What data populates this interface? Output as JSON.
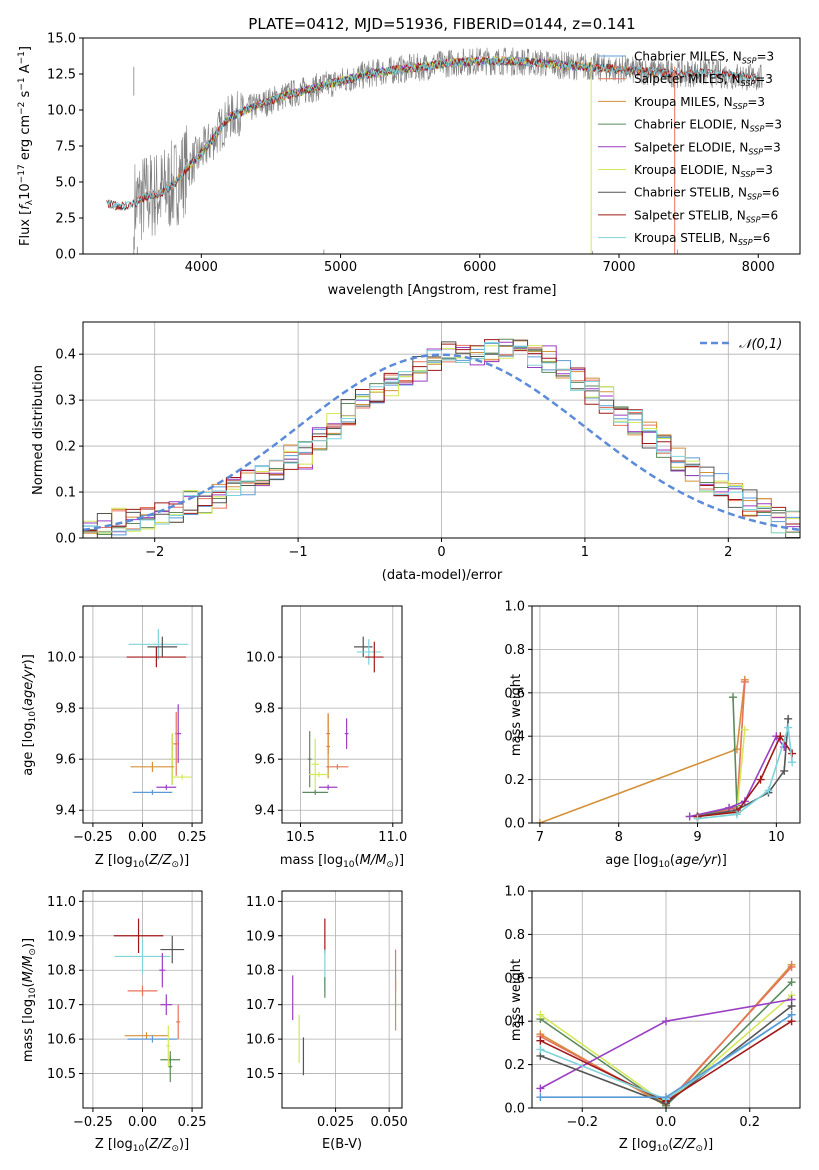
{
  "chart_data": [
    {
      "id": "spectrum",
      "type": "line",
      "title": "PLATE=0412, MJD=51936, FIBERID=0144, z=0.141",
      "xlabel": "wavelength [Angstrom, rest frame]",
      "ylabel": "Flux [f_λ 10^-17 erg cm^-2 s^-1 A^-1]",
      "xlim": [
        3150,
        8300
      ],
      "ylim": [
        0,
        15
      ],
      "xticks": [
        4000,
        5000,
        6000,
        7000,
        8000
      ],
      "yticks": [
        0.0,
        2.5,
        5.0,
        7.5,
        10.0,
        12.5,
        15.0
      ],
      "grid": false,
      "legend_position": "top-right",
      "observed_color": "#808080",
      "data_points": {
        "x": [
          3300,
          3400,
          3500,
          3600,
          3700,
          3800,
          3900,
          4000,
          4100,
          4200,
          4400,
          4600,
          4800,
          5000,
          5200,
          5400,
          5600,
          5800,
          6000,
          6200,
          6400,
          6600,
          6800,
          7000,
          7200,
          7400,
          7600,
          7800,
          8000
        ],
        "y": [
          3.6,
          3.3,
          3.4,
          4.0,
          4.2,
          4.8,
          6.0,
          7.0,
          8.2,
          9.5,
          10.3,
          11.0,
          11.5,
          12.0,
          12.5,
          12.8,
          13.0,
          13.3,
          13.4,
          13.4,
          13.3,
          13.1,
          13.0,
          12.8,
          12.7,
          12.5,
          12.6,
          12.4,
          12.2
        ]
      },
      "series": [
        {
          "name": "Chabrier MILES, N_SSP=3",
          "label_main": "Chabrier MILES, N",
          "label_sub": "SSP",
          "label_tail": "=3",
          "color": "#5b9bd5",
          "xmin": 3540,
          "xmax": 7400
        },
        {
          "name": "Salpeter MILES, N_SSP=3",
          "label_main": "Salpeter MILES, N",
          "label_sub": "SSP",
          "label_tail": "=3",
          "color": "#e6735c",
          "xmin": 3540,
          "xmax": 7400
        },
        {
          "name": "Kroupa MILES, N_SSP=3",
          "label_main": "Kroupa MILES, N",
          "label_sub": "SSP",
          "label_tail": "=3",
          "color": "#d4913a",
          "xmin": 3540,
          "xmax": 7400
        },
        {
          "name": "Chabrier ELODIE, N_SSP=3",
          "label_main": "Chabrier ELODIE, N",
          "label_sub": "SSP",
          "label_tail": "=3",
          "color": "#5c8a5c",
          "xmin": 3900,
          "xmax": 6800
        },
        {
          "name": "Salpeter ELODIE, N_SSP=3",
          "label_main": "Salpeter ELODIE, N",
          "label_sub": "SSP",
          "label_tail": "=3",
          "color": "#9b3fc4",
          "xmin": 3900,
          "xmax": 6800
        },
        {
          "name": "Kroupa ELODIE, N_SSP=3",
          "label_main": "Kroupa ELODIE, N",
          "label_sub": "SSP",
          "label_tail": "=3",
          "color": "#d4e85a",
          "xmin": 3900,
          "xmax": 6800
        },
        {
          "name": "Chabrier STELIB, N_SSP=6",
          "label_main": "Chabrier STELIB, N",
          "label_sub": "SSP",
          "label_tail": "=6",
          "color": "#555555",
          "xmin": 3320,
          "xmax": 8000
        },
        {
          "name": "Salpeter STELIB, N_SSP=6",
          "label_main": "Salpeter STELIB, N",
          "label_sub": "SSP",
          "label_tail": "=6",
          "color": "#a01818",
          "xmin": 3320,
          "xmax": 8000
        },
        {
          "name": "Kroupa STELIB, N_SSP=6",
          "label_main": "Kroupa STELIB, N",
          "label_sub": "SSP",
          "label_tail": "=6",
          "color": "#7fd3dc",
          "xmin": 3320,
          "xmax": 8000
        }
      ]
    },
    {
      "id": "residuals",
      "type": "line",
      "xlabel": "(data-model)/error",
      "ylabel": "Normed distribution",
      "xlim": [
        -2.5,
        2.5
      ],
      "ylim": [
        0,
        0.47
      ],
      "xticks": [
        -2,
        -1,
        0,
        1,
        2
      ],
      "xtick_labels": [
        "−2",
        "−1",
        "0",
        "1",
        "2"
      ],
      "yticks": [
        0.0,
        0.1,
        0.2,
        0.3,
        0.4
      ],
      "grid": true,
      "legend_label": "𝒩(0,1)",
      "legend_position": "top-right",
      "normal_curve": {
        "mean": 0,
        "sigma": 1,
        "color": "#5b8bd9"
      },
      "hist_bins": {
        "start": -2.5,
        "width": 0.1,
        "count": 50
      },
      "hist_envelope": [
        0.02,
        0.025,
        0.035,
        0.04,
        0.045,
        0.05,
        0.06,
        0.075,
        0.08,
        0.095,
        0.11,
        0.12,
        0.135,
        0.15,
        0.175,
        0.18,
        0.21,
        0.245,
        0.275,
        0.3,
        0.31,
        0.33,
        0.35,
        0.37,
        0.39,
        0.4,
        0.395,
        0.4,
        0.41,
        0.42,
        0.415,
        0.4,
        0.39,
        0.37,
        0.35,
        0.32,
        0.3,
        0.27,
        0.25,
        0.225,
        0.2,
        0.175,
        0.15,
        0.125,
        0.11,
        0.095,
        0.075,
        0.06,
        0.04,
        0.03
      ]
    },
    {
      "id": "age-vs-Z",
      "type": "scatter",
      "xlabel": "Z [log10(Z/Z☉)]",
      "ylabel": "age  [log10(age/yr)]",
      "xlim": [
        -0.3,
        0.3
      ],
      "ylim": [
        9.35,
        10.2
      ],
      "xticks": [
        -0.25,
        0.0,
        0.25
      ],
      "xtick_labels": [
        "−0.25",
        "0.00",
        "0.25"
      ],
      "yticks": [
        9.4,
        9.6,
        9.8,
        10.0
      ],
      "ytick_labels": [
        "9.4",
        "9.6",
        "9.8",
        "10.0"
      ],
      "grid": true,
      "points": [
        {
          "x": 0.08,
          "y": 10.05,
          "xerr": 0.3,
          "yerr": 0.12,
          "color": "#7fd3dc"
        },
        {
          "x": 0.1,
          "y": 10.04,
          "xerr": 0.15,
          "yerr": 0.08,
          "color": "#555555"
        },
        {
          "x": 0.07,
          "y": 10.0,
          "xerr": 0.3,
          "yerr": 0.08,
          "color": "#a01818"
        },
        {
          "x": 0.18,
          "y": 9.7,
          "xerr": 0.03,
          "yerr": 0.23,
          "color": "#9b3fc4"
        },
        {
          "x": 0.17,
          "y": 9.66,
          "xerr": 0.03,
          "yerr": 0.25,
          "color": "#e6735c"
        },
        {
          "x": 0.15,
          "y": 9.6,
          "xerr": 0.02,
          "yerr": 0.2,
          "color": "#5c8a5c"
        },
        {
          "x": 0.15,
          "y": 9.6,
          "xerr": 0.02,
          "yerr": 0.2,
          "color": "#d4e85a"
        },
        {
          "x": 0.05,
          "y": 9.57,
          "xerr": 0.22,
          "yerr": 0.04,
          "color": "#d4913a"
        },
        {
          "x": 0.2,
          "y": 9.53,
          "xerr": 0.1,
          "yerr": 0.02,
          "color": "#d4e85a"
        },
        {
          "x": 0.12,
          "y": 9.49,
          "xerr": 0.1,
          "yerr": 0.02,
          "color": "#9b3fc4"
        },
        {
          "x": 0.05,
          "y": 9.47,
          "xerr": 0.2,
          "yerr": 0.02,
          "color": "#5b9bd5"
        }
      ]
    },
    {
      "id": "age-vs-mass",
      "type": "scatter",
      "xlabel": "mass [log10(M/M☉)]",
      "xlim": [
        10.4,
        11.05
      ],
      "ylim": [
        9.35,
        10.2
      ],
      "xticks": [
        10.5,
        11.0
      ],
      "xtick_labels": [
        "10.5",
        "11.0"
      ],
      "yticks": [
        9.4,
        9.6,
        9.8,
        10.0
      ],
      "ytick_labels": [
        "9.4",
        "9.6",
        "9.8",
        "10.0"
      ],
      "grid": true,
      "points": [
        {
          "x": 10.84,
          "y": 10.04,
          "xerr": 0.1,
          "yerr": 0.08,
          "color": "#555555"
        },
        {
          "x": 10.87,
          "y": 10.02,
          "xerr": 0.13,
          "yerr": 0.1,
          "color": "#7fd3dc"
        },
        {
          "x": 10.9,
          "y": 10.0,
          "xerr": 0.1,
          "yerr": 0.12,
          "color": "#a01818"
        },
        {
          "x": 10.75,
          "y": 9.7,
          "xerr": 0.02,
          "yerr": 0.12,
          "color": "#9b3fc4"
        },
        {
          "x": 10.65,
          "y": 9.7,
          "xerr": 0.02,
          "yerr": 0.16,
          "color": "#e6735c"
        },
        {
          "x": 10.55,
          "y": 9.6,
          "xerr": 0.02,
          "yerr": 0.22,
          "color": "#5c8a5c"
        },
        {
          "x": 10.65,
          "y": 9.65,
          "xerr": 0.02,
          "yerr": 0.25,
          "color": "#d4913a"
        },
        {
          "x": 10.58,
          "y": 9.58,
          "xerr": 0.04,
          "yerr": 0.2,
          "color": "#d4e85a"
        },
        {
          "x": 10.7,
          "y": 9.57,
          "xerr": 0.12,
          "yerr": 0.02,
          "color": "#e6735c"
        },
        {
          "x": 10.6,
          "y": 9.54,
          "xerr": 0.11,
          "yerr": 0.02,
          "color": "#d4e85a"
        },
        {
          "x": 10.65,
          "y": 9.49,
          "xerr": 0.1,
          "yerr": 0.02,
          "color": "#9b3fc4"
        },
        {
          "x": 10.58,
          "y": 9.47,
          "xerr": 0.14,
          "yerr": 0.02,
          "color": "#5c8a5c"
        }
      ]
    },
    {
      "id": "weight-vs-age",
      "type": "line",
      "xlabel": "age  [log10(age/yr)]",
      "ylabel": "mass weight",
      "xlim": [
        6.9,
        10.3
      ],
      "ylim": [
        0,
        1
      ],
      "xticks": [
        7,
        8,
        9,
        10
      ],
      "xtick_labels": [
        "7",
        "8",
        "9",
        "10"
      ],
      "yticks": [
        0.0,
        0.2,
        0.4,
        0.6,
        0.8,
        1.0
      ],
      "ytick_labels": [
        "0.0",
        "0.2",
        "0.4",
        "0.6",
        "0.8",
        "1.0"
      ],
      "grid": true,
      "series": [
        {
          "color": "#d4913a",
          "x": [
            7.0,
            9.5,
            9.6
          ],
          "y": [
            0.0,
            0.34,
            0.66
          ]
        },
        {
          "color": "#e6735c",
          "x": [
            9.0,
            9.5,
            9.6
          ],
          "y": [
            0.03,
            0.07,
            0.65
          ]
        },
        {
          "color": "#5c8a5c",
          "x": [
            9.0,
            9.5,
            9.45
          ],
          "y": [
            0.03,
            0.08,
            0.58
          ]
        },
        {
          "color": "#d4e85a",
          "x": [
            9.0,
            9.5,
            9.6
          ],
          "y": [
            0.03,
            0.05,
            0.43
          ]
        },
        {
          "color": "#9b3fc4",
          "x": [
            8.9,
            9.4,
            9.6,
            10.0,
            10.1
          ],
          "y": [
            0.03,
            0.07,
            0.1,
            0.4,
            0.35
          ]
        },
        {
          "color": "#555555",
          "x": [
            9.0,
            9.5,
            9.9,
            10.1,
            10.15
          ],
          "y": [
            0.03,
            0.06,
            0.14,
            0.24,
            0.48
          ]
        },
        {
          "color": "#a01818",
          "x": [
            9.0,
            9.5,
            9.8,
            10.05,
            10.2
          ],
          "y": [
            0.03,
            0.05,
            0.2,
            0.4,
            0.32
          ]
        },
        {
          "color": "#7fd3dc",
          "x": [
            9.0,
            9.5,
            9.9,
            10.15,
            10.2
          ],
          "y": [
            0.02,
            0.04,
            0.15,
            0.44,
            0.28
          ]
        }
      ]
    },
    {
      "id": "mass-vs-Z",
      "type": "scatter",
      "xlabel": "Z [log10(Z/Z☉)]",
      "ylabel": "mass [log10(M/M☉)]",
      "xlim": [
        -0.3,
        0.3
      ],
      "ylim": [
        10.4,
        11.03
      ],
      "xticks": [
        -0.25,
        0.0,
        0.25
      ],
      "xtick_labels": [
        "−0.25",
        "0.00",
        "0.25"
      ],
      "yticks": [
        10.5,
        10.6,
        10.7,
        10.8,
        10.9,
        11.0
      ],
      "ytick_labels": [
        "10.5",
        "10.6",
        "10.7",
        "10.8",
        "10.9",
        "11.0"
      ],
      "grid": true,
      "points": [
        {
          "x": -0.02,
          "y": 10.9,
          "xerr": 0.25,
          "yerr": 0.1,
          "color": "#a01818"
        },
        {
          "x": 0.15,
          "y": 10.86,
          "xerr": 0.12,
          "yerr": 0.08,
          "color": "#555555"
        },
        {
          "x": 0.0,
          "y": 10.84,
          "xerr": 0.28,
          "yerr": 0.1,
          "color": "#7fd3dc"
        },
        {
          "x": 0.1,
          "y": 10.8,
          "xerr": 0.03,
          "yerr": 0.1,
          "color": "#9b3fc4"
        },
        {
          "x": 0.0,
          "y": 10.74,
          "xerr": 0.15,
          "yerr": 0.03,
          "color": "#e6735c"
        },
        {
          "x": 0.12,
          "y": 10.7,
          "xerr": 0.06,
          "yerr": 0.06,
          "color": "#9b3fc4"
        },
        {
          "x": 0.02,
          "y": 10.61,
          "xerr": 0.22,
          "yerr": 0.02,
          "color": "#d4913a"
        },
        {
          "x": 0.05,
          "y": 10.6,
          "xerr": 0.25,
          "yerr": 0.02,
          "color": "#5b9bd5"
        },
        {
          "x": 0.18,
          "y": 10.65,
          "xerr": 0.02,
          "yerr": 0.1,
          "color": "#e6735c"
        },
        {
          "x": 0.14,
          "y": 10.52,
          "xerr": 0.02,
          "yerr": 0.09,
          "color": "#5c8a5c"
        },
        {
          "x": 0.14,
          "y": 10.54,
          "xerr": 0.1,
          "yerr": 0.02,
          "color": "#5c8a5c"
        },
        {
          "x": 0.13,
          "y": 10.58,
          "xerr": 0.02,
          "yerr": 0.12,
          "color": "#d4e85a"
        }
      ]
    },
    {
      "id": "mass-vs-ebv",
      "type": "scatter",
      "xlabel": "E(B-V)",
      "xlim": [
        0.0,
        0.056
      ],
      "ylim": [
        10.4,
        11.03
      ],
      "xticks": [
        0.025,
        0.05
      ],
      "xtick_labels": [
        "0.025",
        "0.050"
      ],
      "yticks": [
        10.5,
        10.6,
        10.7,
        10.8,
        10.9,
        11.0
      ],
      "ytick_labels": [
        "10.5",
        "10.6",
        "10.7",
        "10.8",
        "10.9",
        "11.0"
      ],
      "grid": true,
      "points": [
        {
          "x": 0.005,
          "y": 10.72,
          "xerr": 0,
          "yerr": 0.13,
          "color": "#9b3fc4"
        },
        {
          "x": 0.008,
          "y": 10.6,
          "xerr": 0,
          "yerr": 0.14,
          "color": "#d4e85a"
        },
        {
          "x": 0.01,
          "y": 10.55,
          "xerr": 0,
          "yerr": 0.11,
          "color": "#555555"
        },
        {
          "x": 0.02,
          "y": 10.9,
          "xerr": 0,
          "yerr": 0.1,
          "color": "#a01818"
        },
        {
          "x": 0.02,
          "y": 10.8,
          "xerr": 0,
          "yerr": 0.12,
          "color": "#7fd3dc"
        },
        {
          "x": 0.02,
          "y": 10.75,
          "xerr": 0,
          "yerr": 0.06,
          "color": "#5c8a5c"
        },
        {
          "x": 0.053,
          "y": 10.8,
          "xerr": 0,
          "yerr": 0.12,
          "color": "#e6735c"
        },
        {
          "x": 0.053,
          "y": 10.7,
          "xerr": 0,
          "yerr": 0.15,
          "color": "#d4913a"
        }
      ]
    },
    {
      "id": "weight-vs-Z",
      "type": "line",
      "xlabel": "Z [log10(Z/Z☉)]",
      "ylabel": "mass weight",
      "xlim": [
        -0.32,
        0.32
      ],
      "ylim": [
        0,
        1
      ],
      "xticks": [
        -0.2,
        0.0,
        0.2
      ],
      "xtick_labels": [
        "−0.2",
        "0.0",
        "0.2"
      ],
      "yticks": [
        0.0,
        0.2,
        0.4,
        0.6,
        0.8,
        1.0
      ],
      "ytick_labels": [
        "0.0",
        "0.2",
        "0.4",
        "0.6",
        "0.8",
        "1.0"
      ],
      "grid": true,
      "series": [
        {
          "color": "#d4913a",
          "x": [
            -0.3,
            0.0,
            0.3
          ],
          "y": [
            0.34,
            0.01,
            0.66
          ]
        },
        {
          "color": "#e6735c",
          "x": [
            -0.3,
            0.0,
            0.3
          ],
          "y": [
            0.33,
            0.02,
            0.65
          ]
        },
        {
          "color": "#5c8a5c",
          "x": [
            -0.3,
            0.0,
            0.3
          ],
          "y": [
            0.41,
            0.01,
            0.58
          ]
        },
        {
          "color": "#d4e85a",
          "x": [
            -0.3,
            0.0,
            0.3
          ],
          "y": [
            0.43,
            0.02,
            0.52
          ]
        },
        {
          "color": "#9b3fc4",
          "x": [
            -0.3,
            0.0,
            0.3
          ],
          "y": [
            0.09,
            0.4,
            0.5
          ]
        },
        {
          "color": "#555555",
          "x": [
            -0.3,
            0.0,
            0.3
          ],
          "y": [
            0.24,
            0.02,
            0.47
          ]
        },
        {
          "color": "#a01818",
          "x": [
            -0.3,
            0.0,
            0.3
          ],
          "y": [
            0.31,
            0.03,
            0.4
          ]
        },
        {
          "color": "#7fd3dc",
          "x": [
            -0.3,
            0.0,
            0.3
          ],
          "y": [
            0.27,
            0.04,
            0.43
          ]
        },
        {
          "color": "#5b9bd5",
          "x": [
            -0.3,
            0.0,
            0.3
          ],
          "y": [
            0.05,
            0.05,
            0.43
          ]
        }
      ]
    }
  ]
}
